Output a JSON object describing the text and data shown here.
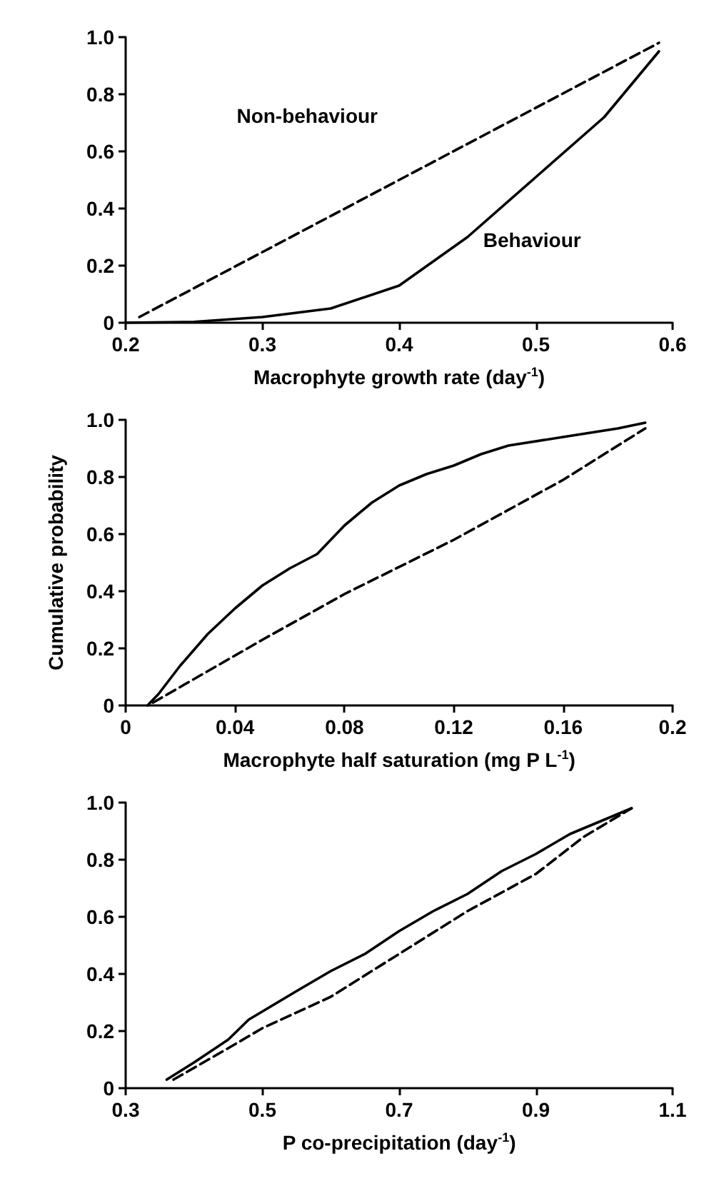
{
  "chart_data": [
    {
      "type": "line",
      "xlabel": "Macrophyte growth rate (day$^{-1}$)",
      "xlim": [
        0.2,
        0.6
      ],
      "xticks": [
        0.2,
        0.3,
        0.4,
        0.5,
        0.6
      ],
      "ylim": [
        0,
        1.0
      ],
      "yticks": [
        {
          "value": 0,
          "label": "0"
        },
        {
          "value": 0.2,
          "label": "0.2"
        },
        {
          "value": 0.4,
          "label": "0.4"
        },
        {
          "value": 0.6,
          "label": "0.6"
        },
        {
          "value": 0.8,
          "label": "0.8"
        },
        {
          "value": 1,
          "label": "1.0"
        }
      ],
      "grid": false,
      "legend": false,
      "series": [
        {
          "name": "Non-behaviour",
          "color": "#000000",
          "line_style": "dashed",
          "x": [
            0.21,
            0.4,
            0.59
          ],
          "values": [
            0.02,
            0.5,
            0.98
          ]
        },
        {
          "name": "Behaviour",
          "color": "#000000",
          "line_style": "solid",
          "x": [
            0.2,
            0.25,
            0.3,
            0.35,
            0.4,
            0.45,
            0.5,
            0.55,
            0.59
          ],
          "values": [
            0,
            0.003,
            0.02,
            0.05,
            0.13,
            0.3,
            0.51,
            0.72,
            0.95
          ]
        }
      ]
    },
    {
      "type": "line",
      "xlabel": "Macrophyte half saturation (mg P L$^{-1}$)",
      "ylabel": "Cumulative probability",
      "xlim": [
        0,
        0.2
      ],
      "xticks": [
        0,
        0.04,
        0.08,
        0.12,
        0.16,
        0.2
      ],
      "ylim": [
        0,
        1.0
      ],
      "yticks": [
        {
          "value": 0,
          "label": "0"
        },
        {
          "value": 0.2,
          "label": "0.2"
        },
        {
          "value": 0.4,
          "label": "0.4"
        },
        {
          "value": 0.6,
          "label": "0.6"
        },
        {
          "value": 0.8,
          "label": "0.8"
        },
        {
          "value": 1,
          "label": "1.0"
        }
      ],
      "grid": false,
      "legend": false,
      "series": [
        {
          "color": "#000000",
          "line_style": "dashed",
          "x": [
            0.01,
            0.03,
            0.05,
            0.08,
            0.12,
            0.16,
            0.19
          ],
          "values": [
            0.01,
            0.12,
            0.23,
            0.39,
            0.58,
            0.79,
            0.97
          ]
        },
        {
          "color": "#000000",
          "line_style": "solid",
          "x": [
            0.008,
            0.012,
            0.02,
            0.03,
            0.04,
            0.05,
            0.06,
            0.07,
            0.08,
            0.09,
            0.1,
            0.11,
            0.12,
            0.13,
            0.14,
            0.16,
            0.18,
            0.19
          ],
          "values": [
            0,
            0.04,
            0.14,
            0.25,
            0.34,
            0.42,
            0.48,
            0.53,
            0.63,
            0.71,
            0.77,
            0.81,
            0.84,
            0.88,
            0.91,
            0.94,
            0.97,
            0.99
          ]
        }
      ]
    },
    {
      "type": "line",
      "xlabel": "P co-precipitation (day$^{-1}$)",
      "xlim": [
        0.3,
        1.1
      ],
      "xticks": [
        0.3,
        0.5,
        0.7,
        0.9,
        1.1
      ],
      "ylim": [
        0,
        1.0
      ],
      "yticks": [
        {
          "value": 0,
          "label": "0"
        },
        {
          "value": 0.2,
          "label": "0.2"
        },
        {
          "value": 0.4,
          "label": "0.4"
        },
        {
          "value": 0.6,
          "label": "0.6"
        },
        {
          "value": 0.8,
          "label": "0.8"
        },
        {
          "value": 1,
          "label": "1.0"
        }
      ],
      "grid": false,
      "legend": false,
      "series": [
        {
          "color": "#000000",
          "line_style": "dashed",
          "x": [
            0.37,
            0.45,
            0.5,
            0.6,
            0.7,
            0.8,
            0.9,
            0.97,
            1.04
          ],
          "values": [
            0.03,
            0.14,
            0.21,
            0.32,
            0.47,
            0.62,
            0.75,
            0.88,
            0.98
          ]
        },
        {
          "color": "#000000",
          "line_style": "solid",
          "x": [
            0.36,
            0.4,
            0.45,
            0.48,
            0.55,
            0.6,
            0.65,
            0.7,
            0.75,
            0.8,
            0.85,
            0.9,
            0.95,
            1.04
          ],
          "values": [
            0.03,
            0.09,
            0.17,
            0.24,
            0.34,
            0.41,
            0.47,
            0.55,
            0.62,
            0.68,
            0.76,
            0.82,
            0.89,
            0.98
          ]
        }
      ]
    }
  ]
}
